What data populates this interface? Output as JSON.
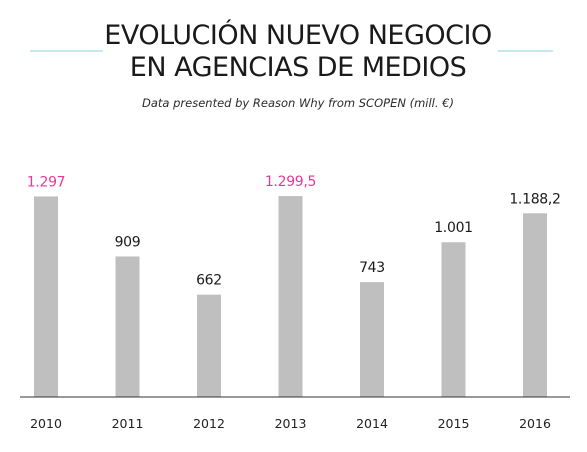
{
  "title_line1": "EVOLUCIÓN NUEVO NEGOCIO",
  "title_line2": "EN AGENCIAS DE MEDIOS",
  "subtitle": "Data presented by Reason Why from SCOPEN (mill. €)",
  "colors": {
    "bar": "#bfbfbf",
    "highlight_label": "#e5399a",
    "label": "#1a1a1a",
    "decor_line": "#7fd6e6",
    "axis": "#333333"
  },
  "chart_data": {
    "type": "bar",
    "title": "EVOLUCIÓN NUEVO NEGOCIO EN AGENCIAS DE MEDIOS",
    "subtitle": "Data presented by Reason Why from SCOPEN (mill. €)",
    "xlabel": "",
    "ylabel": "",
    "categories": [
      "2010",
      "2011",
      "2012",
      "2013",
      "2014",
      "2015",
      "2016"
    ],
    "values": [
      1297,
      909,
      662,
      1299.5,
      743,
      1001,
      1188.2
    ],
    "value_labels": [
      "1.297",
      "909",
      "662",
      "1.299,5",
      "743",
      "1.001",
      "1.188,2"
    ],
    "highlighted": [
      true,
      false,
      false,
      true,
      false,
      false,
      false
    ],
    "ylim": [
      0,
      1300
    ],
    "grid": false,
    "legend": "none"
  }
}
